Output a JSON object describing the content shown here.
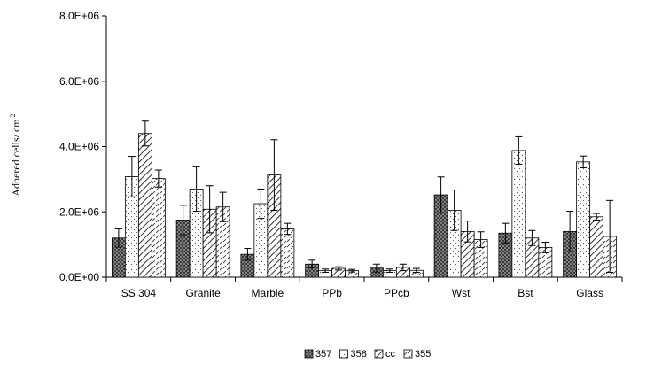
{
  "chart_data": {
    "type": "bar",
    "title": "",
    "xlabel": "",
    "ylabel": "Adhered cells/ cm",
    "ylabel_superscript": "2",
    "ylim": [
      0,
      8000000
    ],
    "yticks": [
      0,
      2000000,
      4000000,
      6000000,
      8000000
    ],
    "ytick_labels": [
      "0.0E+00",
      "2.0E+06",
      "4.0E+06",
      "6.0E+06",
      "8.0E+06"
    ],
    "grid": false,
    "legend_position": "bottom-center",
    "categories": [
      "SS 304",
      "Granite",
      "Marble",
      "PPb",
      "PPcb",
      "Wst",
      "Bst",
      "Glass"
    ],
    "series": [
      {
        "name": "357",
        "pattern": "crosshatch",
        "values": [
          1200000,
          1750000,
          700000,
          400000,
          280000,
          2520000,
          1350000,
          1400000
        ],
        "errors": [
          280000,
          450000,
          180000,
          120000,
          120000,
          550000,
          300000,
          620000
        ]
      },
      {
        "name": "358",
        "pattern": "dots",
        "values": [
          3080000,
          2700000,
          2250000,
          200000,
          200000,
          2050000,
          3880000,
          3530000
        ],
        "errors": [
          620000,
          680000,
          450000,
          50000,
          50000,
          620000,
          420000,
          180000
        ]
      },
      {
        "name": "cc",
        "pattern": "diagonal",
        "values": [
          4400000,
          2080000,
          3130000,
          270000,
          300000,
          1400000,
          1200000,
          1850000
        ],
        "errors": [
          380000,
          720000,
          1080000,
          50000,
          100000,
          320000,
          230000,
          100000
        ]
      },
      {
        "name": "355",
        "pattern": "dashed",
        "values": [
          3020000,
          2150000,
          1480000,
          200000,
          210000,
          1150000,
          910000,
          1250000
        ],
        "errors": [
          260000,
          450000,
          170000,
          40000,
          60000,
          240000,
          160000,
          1100000
        ]
      }
    ]
  }
}
